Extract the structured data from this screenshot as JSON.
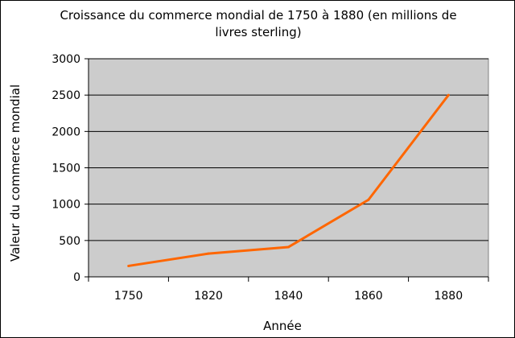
{
  "chart_data": {
    "type": "line",
    "title": "Croissance du commerce mondial de 1750 à 1880 (en millions de livres sterling)",
    "xlabel": "Année",
    "ylabel": "Valeur du commerce mondial",
    "categories": [
      "1750",
      "1820",
      "1840",
      "1860",
      "1880"
    ],
    "series": [
      {
        "values": [
          150,
          320,
          410,
          1060,
          2500
        ]
      }
    ],
    "ylim": [
      0,
      3000
    ],
    "yticks": [
      0,
      500,
      1000,
      1500,
      2000,
      2500,
      3000
    ],
    "grid": true,
    "legend": "none",
    "colors": {
      "line": "#ff6600",
      "plot_background": "#cccccc",
      "gridline": "#000000"
    }
  }
}
